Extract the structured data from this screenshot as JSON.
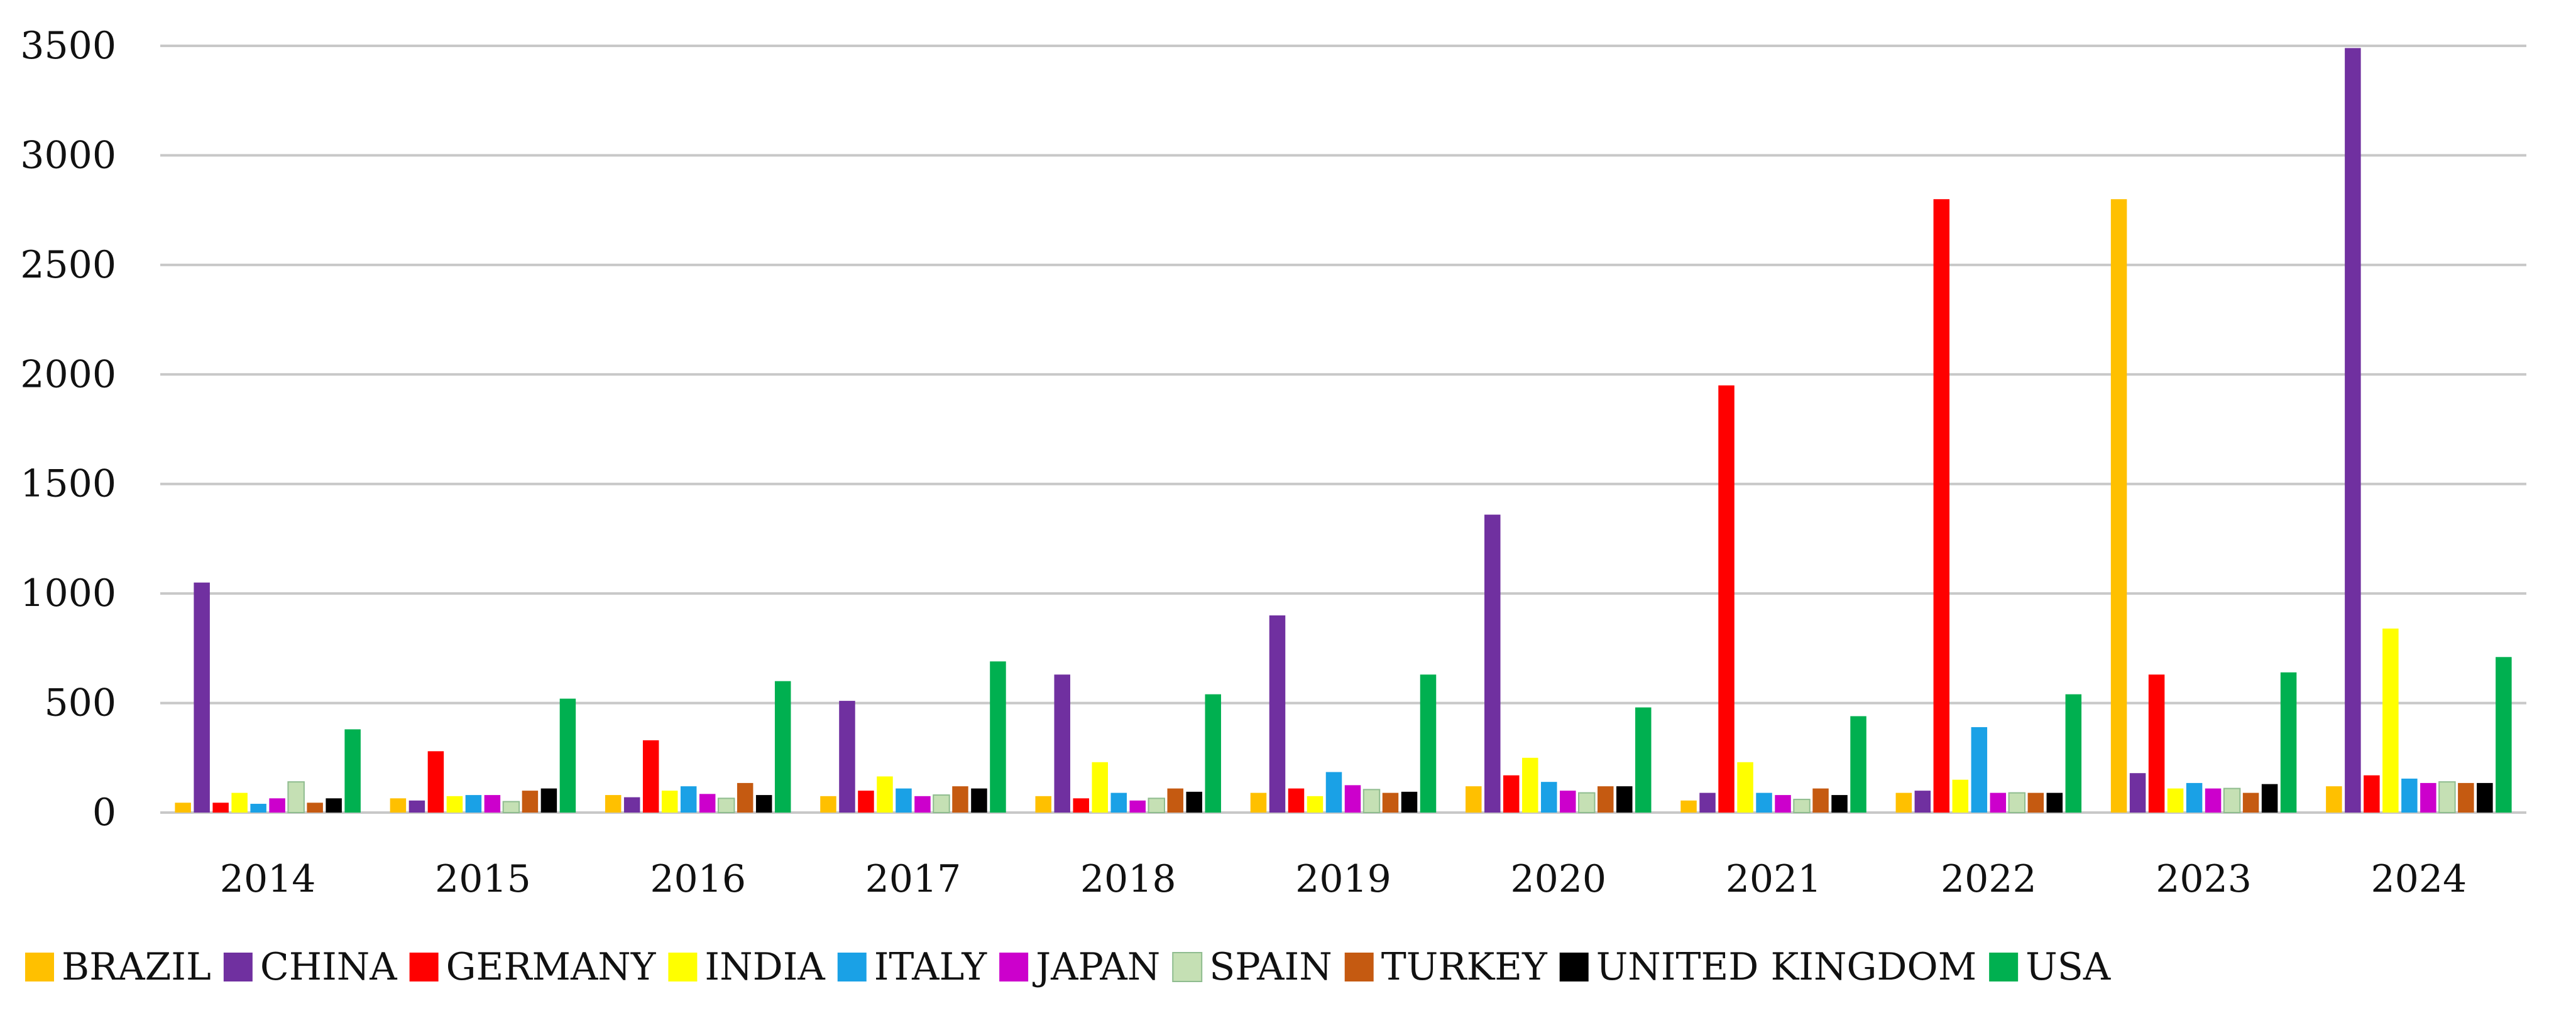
{
  "chart_data": {
    "type": "bar",
    "categories": [
      "2014",
      "2015",
      "2016",
      "2017",
      "2018",
      "2019",
      "2020",
      "2021",
      "2022",
      "2023",
      "2024"
    ],
    "ylim": [
      0,
      3500
    ],
    "yticks": [
      "0",
      "500",
      "1000",
      "1500",
      "2000",
      "2500",
      "3000",
      "3500"
    ],
    "grid": true,
    "legend_position": "bottom",
    "series": [
      {
        "name": "BRAZIL",
        "color": "#FFC000",
        "values": [
          45,
          65,
          80,
          75,
          75,
          90,
          120,
          55,
          90,
          2800,
          120
        ]
      },
      {
        "name": "CHINA",
        "color": "#7030A0",
        "values": [
          1050,
          55,
          70,
          510,
          630,
          900,
          1360,
          90,
          100,
          180,
          3490
        ]
      },
      {
        "name": "GERMANY",
        "color": "#FF0000",
        "values": [
          45,
          280,
          330,
          100,
          65,
          110,
          170,
          1950,
          2800,
          630,
          170
        ]
      },
      {
        "name": "INDIA",
        "color": "#FFFF00",
        "values": [
          90,
          75,
          100,
          165,
          230,
          75,
          250,
          230,
          150,
          110,
          840
        ]
      },
      {
        "name": "ITALY",
        "color": "#1AA1E6",
        "values": [
          40,
          80,
          120,
          110,
          90,
          185,
          140,
          90,
          390,
          135,
          155
        ]
      },
      {
        "name": "JAPAN",
        "color": "#CC00CC",
        "values": [
          65,
          80,
          85,
          75,
          55,
          125,
          100,
          80,
          90,
          110,
          135
        ]
      },
      {
        "name": "SPAIN",
        "color": "#C5E0B4",
        "stroke": "#8FBC8F",
        "values": [
          140,
          50,
          65,
          80,
          65,
          105,
          90,
          60,
          90,
          110,
          140
        ]
      },
      {
        "name": "TURKEY",
        "color": "#C55A11",
        "values": [
          45,
          100,
          135,
          120,
          110,
          90,
          120,
          110,
          90,
          90,
          135
        ]
      },
      {
        "name": "UNITED KINGDOM",
        "color": "#000000",
        "values": [
          65,
          110,
          80,
          110,
          95,
          95,
          120,
          80,
          90,
          130,
          135
        ]
      },
      {
        "name": "USA",
        "color": "#00B050",
        "values": [
          380,
          520,
          600,
          690,
          540,
          630,
          480,
          440,
          540,
          640,
          710
        ]
      }
    ]
  }
}
